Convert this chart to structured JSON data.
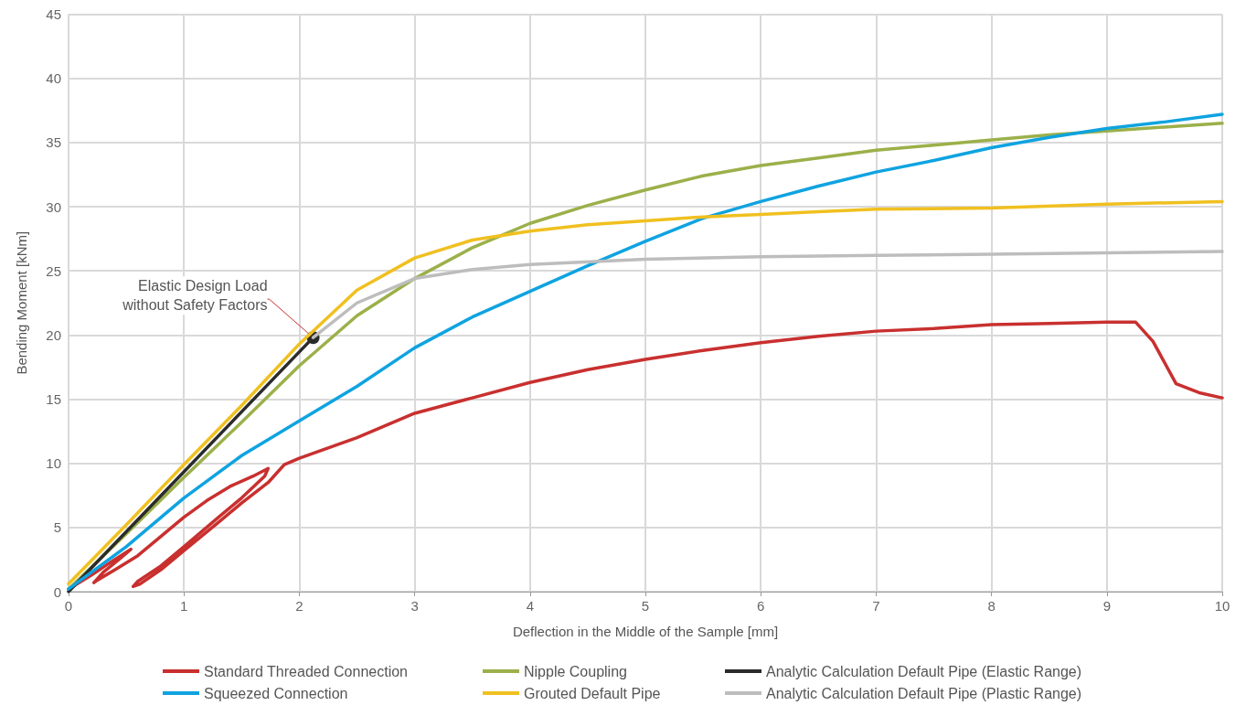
{
  "chart_data": {
    "type": "line",
    "xlabel": "Deflection in the Middle of the Sample [mm]",
    "ylabel": "Bending Moment [kNm]",
    "xlim": [
      0,
      10
    ],
    "xticks": [
      0,
      1,
      2,
      3,
      4,
      5,
      6,
      7,
      8,
      9,
      10
    ],
    "ylim": [
      0,
      45
    ],
    "yticks": [
      0,
      5,
      10,
      15,
      20,
      25,
      30,
      35,
      40,
      45
    ],
    "grid": true,
    "legend": "bottom",
    "line_style": "solid",
    "annotations": [
      {
        "text": "Elastic Design Load\nwithout Safety Factors",
        "x": 2.12,
        "y": 19.8
      }
    ],
    "series": [
      {
        "name": "Standard Threaded Connection",
        "color": "#c8302f",
        "x": [
          0,
          0.2,
          0.4,
          0.54,
          0.45,
          0.3,
          0.22,
          0.25,
          0.4,
          0.6,
          0.8,
          1.0,
          1.2,
          1.4,
          1.6,
          1.73,
          1.7,
          1.5,
          1.3,
          1.0,
          0.8,
          0.6,
          0.56,
          0.62,
          0.8,
          1.0,
          1.3,
          1.5,
          1.73,
          1.87,
          2.0,
          2.5,
          3,
          3.5,
          4,
          4.5,
          5,
          5.5,
          6,
          6.5,
          7,
          7.5,
          8,
          8.5,
          9,
          9.25,
          9.4,
          9.6,
          9.8,
          10
        ],
        "values": [
          0.2,
          1.3,
          2.5,
          3.3,
          2.6,
          1.5,
          0.7,
          0.9,
          1.7,
          2.8,
          4.3,
          5.8,
          7.1,
          8.2,
          9.0,
          9.6,
          9.0,
          7.3,
          5.8,
          3.5,
          2.0,
          0.8,
          0.4,
          0.6,
          1.7,
          3.2,
          5.4,
          6.9,
          8.5,
          9.9,
          10.4,
          12.0,
          13.9,
          15.1,
          16.3,
          17.3,
          18.1,
          18.8,
          19.4,
          19.9,
          20.3,
          20.5,
          20.8,
          20.9,
          21.0,
          21.0,
          19.5,
          16.2,
          15.5,
          15.1
        ]
      },
      {
        "name": "Nipple Coupling",
        "color": "#9bb04a",
        "x": [
          0,
          0.5,
          1,
          1.5,
          2,
          2.5,
          3,
          3.5,
          4,
          4.5,
          5,
          5.5,
          6,
          6.5,
          7,
          7.5,
          8,
          8.5,
          9,
          9.5,
          10
        ],
        "values": [
          0.2,
          4.5,
          8.9,
          13.2,
          17.6,
          21.5,
          24.4,
          26.8,
          28.7,
          30.1,
          31.3,
          32.4,
          33.2,
          33.8,
          34.4,
          34.8,
          35.2,
          35.6,
          35.9,
          36.2,
          36.5
        ]
      },
      {
        "name": "Analytic Calculation Default Pipe (Elastic Range)",
        "color": "#2b2b2b",
        "x": [
          0,
          2.12
        ],
        "values": [
          0,
          19.8
        ]
      },
      {
        "name": "Squeezed Connection",
        "color": "#0fa3e0",
        "x": [
          0,
          0.5,
          1,
          1.5,
          2,
          2.5,
          3,
          3.5,
          4,
          4.5,
          5,
          5.5,
          6,
          6.5,
          7,
          7.5,
          8,
          8.5,
          9,
          9.5,
          10
        ],
        "values": [
          0.2,
          3.5,
          7.3,
          10.6,
          13.3,
          16.0,
          19.0,
          21.4,
          23.4,
          25.4,
          27.3,
          29.1,
          30.4,
          31.6,
          32.7,
          33.6,
          34.6,
          35.4,
          36.1,
          36.6,
          37.2
        ]
      },
      {
        "name": "Grouted Default Pipe",
        "color": "#f0c020",
        "x": [
          0,
          0.5,
          1,
          1.5,
          2,
          2.5,
          3,
          3.5,
          4,
          4.5,
          5,
          5.5,
          6,
          6.5,
          7,
          8,
          9,
          10
        ],
        "values": [
          0.6,
          5.2,
          9.9,
          14.5,
          19.3,
          23.5,
          26.0,
          27.4,
          28.1,
          28.6,
          28.9,
          29.2,
          29.4,
          29.6,
          29.8,
          29.9,
          30.2,
          30.4
        ]
      },
      {
        "name": "Analytic Calculation Default Pipe (Plastic Range)",
        "color": "#bdbdbd",
        "x": [
          2.12,
          2.5,
          3,
          3.5,
          4,
          5,
          6,
          7,
          8,
          9,
          10
        ],
        "values": [
          19.8,
          22.5,
          24.4,
          25.1,
          25.5,
          25.9,
          26.1,
          26.2,
          26.3,
          26.4,
          26.5
        ]
      }
    ]
  }
}
